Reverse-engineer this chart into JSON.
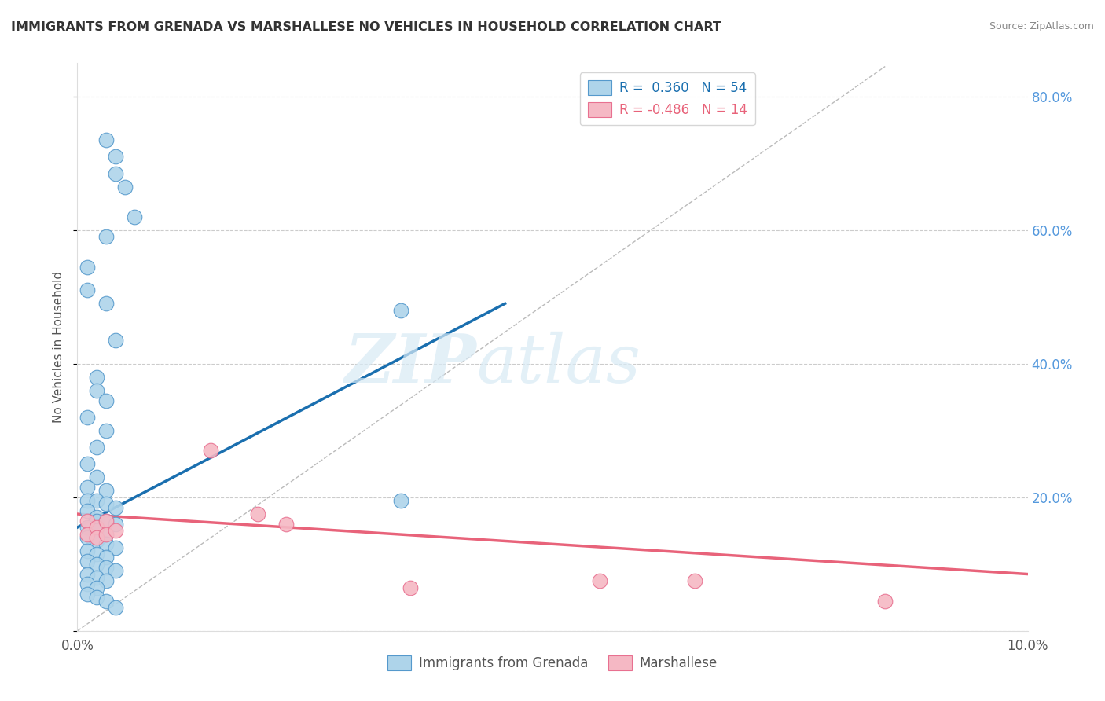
{
  "title": "IMMIGRANTS FROM GRENADA VS MARSHALLESE NO VEHICLES IN HOUSEHOLD CORRELATION CHART",
  "source": "Source: ZipAtlas.com",
  "ylabel": "No Vehicles in Household",
  "xlim": [
    0.0,
    0.1
  ],
  "ylim": [
    0.0,
    0.85
  ],
  "ytick_vals": [
    0.0,
    0.2,
    0.4,
    0.6,
    0.8
  ],
  "xtick_vals": [
    0.0,
    0.1
  ],
  "xtick_labels": [
    "0.0%",
    "10.0%"
  ],
  "legend1_r": "0.360",
  "legend1_n": "54",
  "legend2_r": "-0.486",
  "legend2_n": "14",
  "line1_color": "#1a6faf",
  "line2_color": "#e8637a",
  "scatter1_face": "#aed4ea",
  "scatter2_face": "#f5b8c4",
  "scatter1_edge": "#5599cc",
  "scatter2_edge": "#e87090",
  "background_color": "#ffffff",
  "grid_color": "#cccccc",
  "blue_scatter": [
    [
      0.001,
      0.545
    ],
    [
      0.003,
      0.735
    ],
    [
      0.004,
      0.71
    ],
    [
      0.004,
      0.685
    ],
    [
      0.005,
      0.665
    ],
    [
      0.006,
      0.62
    ],
    [
      0.003,
      0.59
    ],
    [
      0.001,
      0.51
    ],
    [
      0.003,
      0.49
    ],
    [
      0.004,
      0.435
    ],
    [
      0.002,
      0.38
    ],
    [
      0.002,
      0.36
    ],
    [
      0.003,
      0.345
    ],
    [
      0.001,
      0.32
    ],
    [
      0.003,
      0.3
    ],
    [
      0.002,
      0.275
    ],
    [
      0.001,
      0.25
    ],
    [
      0.002,
      0.23
    ],
    [
      0.001,
      0.215
    ],
    [
      0.003,
      0.21
    ],
    [
      0.001,
      0.195
    ],
    [
      0.002,
      0.195
    ],
    [
      0.003,
      0.19
    ],
    [
      0.004,
      0.185
    ],
    [
      0.001,
      0.18
    ],
    [
      0.002,
      0.17
    ],
    [
      0.002,
      0.165
    ],
    [
      0.003,
      0.165
    ],
    [
      0.004,
      0.16
    ],
    [
      0.001,
      0.155
    ],
    [
      0.002,
      0.15
    ],
    [
      0.003,
      0.145
    ],
    [
      0.001,
      0.14
    ],
    [
      0.002,
      0.135
    ],
    [
      0.003,
      0.13
    ],
    [
      0.004,
      0.125
    ],
    [
      0.001,
      0.12
    ],
    [
      0.002,
      0.115
    ],
    [
      0.003,
      0.11
    ],
    [
      0.001,
      0.105
    ],
    [
      0.002,
      0.1
    ],
    [
      0.003,
      0.095
    ],
    [
      0.004,
      0.09
    ],
    [
      0.001,
      0.085
    ],
    [
      0.002,
      0.08
    ],
    [
      0.003,
      0.075
    ],
    [
      0.001,
      0.07
    ],
    [
      0.002,
      0.065
    ],
    [
      0.001,
      0.055
    ],
    [
      0.002,
      0.05
    ],
    [
      0.003,
      0.045
    ],
    [
      0.004,
      0.035
    ],
    [
      0.034,
      0.195
    ],
    [
      0.034,
      0.48
    ]
  ],
  "pink_scatter": [
    [
      0.001,
      0.165
    ],
    [
      0.001,
      0.145
    ],
    [
      0.002,
      0.155
    ],
    [
      0.002,
      0.14
    ],
    [
      0.003,
      0.165
    ],
    [
      0.003,
      0.145
    ],
    [
      0.004,
      0.15
    ],
    [
      0.014,
      0.27
    ],
    [
      0.019,
      0.175
    ],
    [
      0.022,
      0.16
    ],
    [
      0.035,
      0.065
    ],
    [
      0.055,
      0.075
    ],
    [
      0.065,
      0.075
    ],
    [
      0.085,
      0.045
    ]
  ],
  "blue_line_x": [
    0.0,
    0.045
  ],
  "blue_line_y": [
    0.155,
    0.49
  ],
  "pink_line_x": [
    0.0,
    0.1
  ],
  "pink_line_y": [
    0.175,
    0.085
  ],
  "diag_line_x": [
    0.0,
    0.085
  ],
  "diag_line_y": [
    0.0,
    0.845
  ]
}
